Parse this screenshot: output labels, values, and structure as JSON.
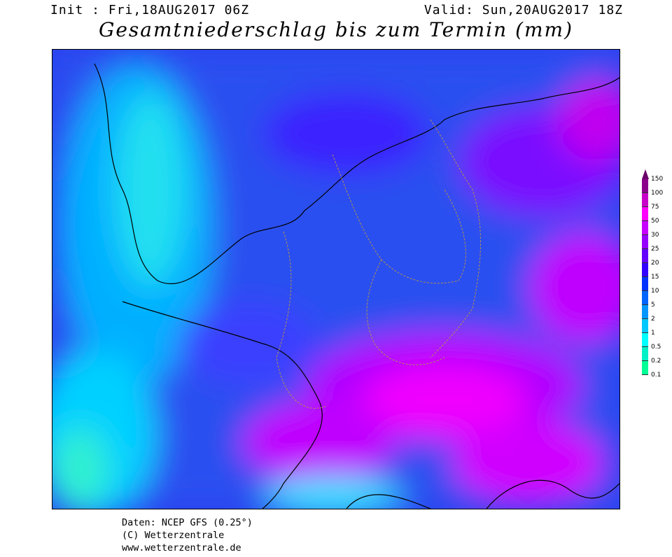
{
  "header": {
    "init": "Init : Fri,18AUG2017 06Z",
    "valid": "Valid: Sun,20AUG2017 18Z",
    "title": "Gesamtniederschlag bis zum Termin (mm)"
  },
  "legend": {
    "unit": "mm",
    "levels": [
      {
        "label": "150",
        "color": "#8b008b"
      },
      {
        "label": "100",
        "color": "#c800c8"
      },
      {
        "label": "75",
        "color": "#ff00ff"
      },
      {
        "label": "50",
        "color": "#c800ff"
      },
      {
        "label": "30",
        "color": "#9600ff"
      },
      {
        "label": "25",
        "color": "#6400ff"
      },
      {
        "label": "20",
        "color": "#3200ff"
      },
      {
        "label": "15",
        "color": "#0032ff"
      },
      {
        "label": "10",
        "color": "#0064ff"
      },
      {
        "label": "5",
        "color": "#0096ff"
      },
      {
        "label": "2",
        "color": "#00c8ff"
      },
      {
        "label": "1",
        "color": "#00ffff"
      },
      {
        "label": "0.5",
        "color": "#00f0c8"
      },
      {
        "label": "0.2",
        "color": "#00ff96"
      },
      {
        "label": "0.1",
        "color": ""
      }
    ],
    "top_color": "#6a006a"
  },
  "map": {
    "region": "Central Europe",
    "field": "Total precipitation (mm)"
  },
  "footer": {
    "line1": "Daten: NCEP GFS (0.25°)",
    "line2": "(C) Wetterzentrale",
    "line3": "www.wetterzentrale.de"
  }
}
